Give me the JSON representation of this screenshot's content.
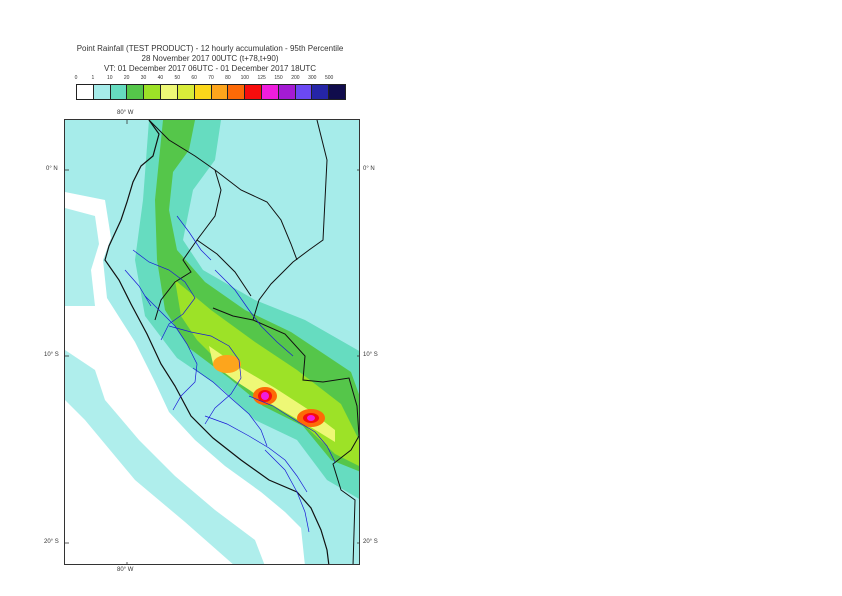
{
  "title": {
    "line1": "Point Rainfall (TEST PRODUCT) - 12 hourly accumulation - 95th Percentile",
    "line2": "28 November 2017 00UTC (t+78,t+90)",
    "line3": "VT: 01 December 2017 06UTC - 01 December 2017 18UTC"
  },
  "legend": {
    "ticks": [
      "0",
      "1",
      "10",
      "20",
      "30",
      "40",
      "50",
      "60",
      "70",
      "80",
      "100",
      "125",
      "150",
      "200",
      "300",
      "500"
    ],
    "colors": [
      "#ffffff",
      "#a6ecea",
      "#66dcc0",
      "#55c64a",
      "#9de227",
      "#eef876",
      "#d8ec3a",
      "#fbd71a",
      "#fda51c",
      "#fd6a07",
      "#f70d0d",
      "#ef1ddd",
      "#a41bd4",
      "#6b49f4",
      "#2525a7",
      "#100c4c"
    ]
  },
  "axes": {
    "lon_top": "80° W",
    "lon_bottom": "80° W",
    "lat_left": [
      "0° N",
      "10° S",
      "20° S"
    ],
    "lat_right": [
      "0° N",
      "10° S",
      "20° S"
    ]
  },
  "colors": {
    "sea_white": "#ffffff",
    "land_base": "#a6ecea",
    "country_border": "#111111",
    "region_border": "#1a1ad6"
  }
}
